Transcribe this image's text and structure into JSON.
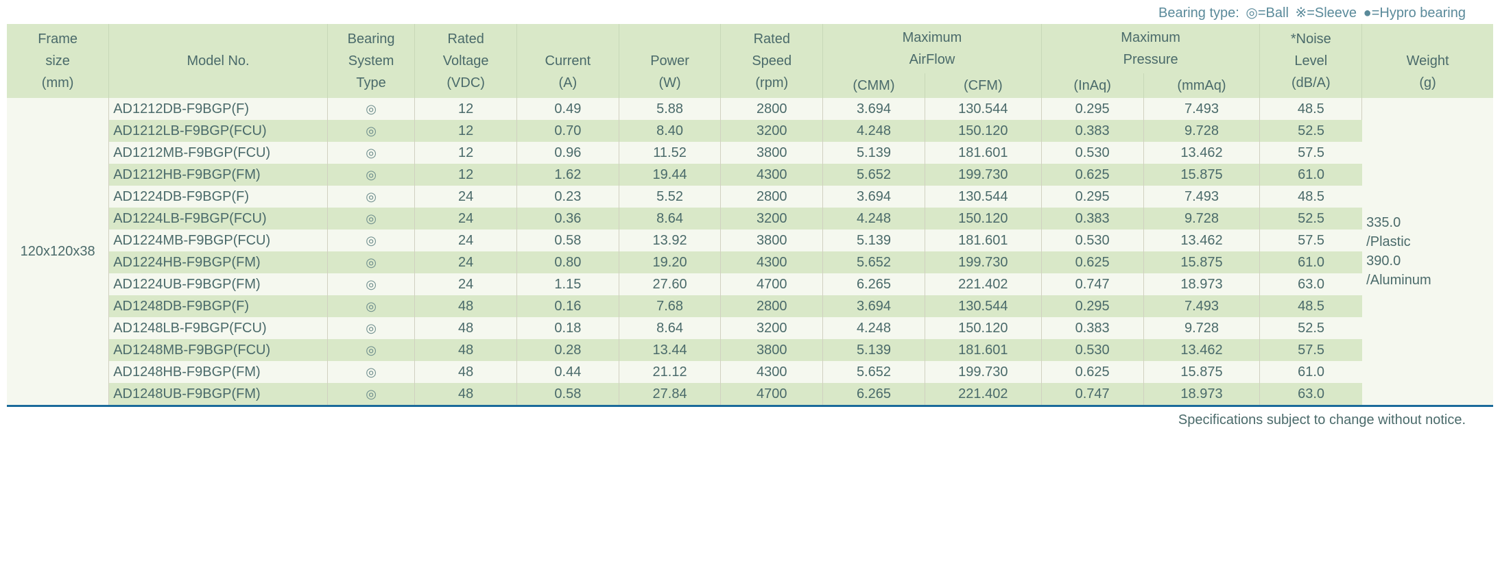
{
  "legend": {
    "label": "Bearing type:",
    "ball": "◎=Ball",
    "sleeve": "※=Sleeve",
    "hypro": "●=Hypro bearing"
  },
  "headers": {
    "frame": [
      "Frame",
      "size",
      "(mm)"
    ],
    "model": [
      "Model No."
    ],
    "bearing": [
      "Bearing",
      "System",
      "Type"
    ],
    "voltage": [
      "Rated",
      "Voltage",
      "(VDC)"
    ],
    "current": [
      "Current",
      "(A)"
    ],
    "power": [
      "Power",
      "(W)"
    ],
    "speed": [
      "Rated",
      "Speed",
      "(rpm)"
    ],
    "airflow": "Maximum AirFlow",
    "cmm": "(CMM)",
    "cfm": "(CFM)",
    "pressure": "Maximum Pressure",
    "inaq": "(InAq)",
    "mmaq": "(mmAq)",
    "noise": [
      "*Noise",
      "Level",
      "(dB/A)"
    ],
    "weight": [
      "Weight",
      "(g)"
    ]
  },
  "frame_size": "120x120x38",
  "weight_text": "335.0\n/Plastic\n390.0\n/Aluminum",
  "bearing_symbol": "◎",
  "rows": [
    {
      "model": "AD1212DB-F9BGP(F)",
      "voltage": "12",
      "current": "0.49",
      "power": "5.88",
      "speed": "2800",
      "cmm": "3.694",
      "cfm": "130.544",
      "inaq": "0.295",
      "mmaq": "7.493",
      "noise": "48.5"
    },
    {
      "model": "AD1212LB-F9BGP(FCU)",
      "voltage": "12",
      "current": "0.70",
      "power": "8.40",
      "speed": "3200",
      "cmm": "4.248",
      "cfm": "150.120",
      "inaq": "0.383",
      "mmaq": "9.728",
      "noise": "52.5"
    },
    {
      "model": "AD1212MB-F9BGP(FCU)",
      "voltage": "12",
      "current": "0.96",
      "power": "11.52",
      "speed": "3800",
      "cmm": "5.139",
      "cfm": "181.601",
      "inaq": "0.530",
      "mmaq": "13.462",
      "noise": "57.5"
    },
    {
      "model": "AD1212HB-F9BGP(FM)",
      "voltage": "12",
      "current": "1.62",
      "power": "19.44",
      "speed": "4300",
      "cmm": "5.652",
      "cfm": "199.730",
      "inaq": "0.625",
      "mmaq": "15.875",
      "noise": "61.0"
    },
    {
      "model": "AD1224DB-F9BGP(F)",
      "voltage": "24",
      "current": "0.23",
      "power": "5.52",
      "speed": "2800",
      "cmm": "3.694",
      "cfm": "130.544",
      "inaq": "0.295",
      "mmaq": "7.493",
      "noise": "48.5"
    },
    {
      "model": "AD1224LB-F9BGP(FCU)",
      "voltage": "24",
      "current": "0.36",
      "power": "8.64",
      "speed": "3200",
      "cmm": "4.248",
      "cfm": "150.120",
      "inaq": "0.383",
      "mmaq": "9.728",
      "noise": "52.5"
    },
    {
      "model": "AD1224MB-F9BGP(FCU)",
      "voltage": "24",
      "current": "0.58",
      "power": "13.92",
      "speed": "3800",
      "cmm": "5.139",
      "cfm": "181.601",
      "inaq": "0.530",
      "mmaq": "13.462",
      "noise": "57.5"
    },
    {
      "model": "AD1224HB-F9BGP(FM)",
      "voltage": "24",
      "current": "0.80",
      "power": "19.20",
      "speed": "4300",
      "cmm": "5.652",
      "cfm": "199.730",
      "inaq": "0.625",
      "mmaq": "15.875",
      "noise": "61.0"
    },
    {
      "model": "AD1224UB-F9BGP(FM)",
      "voltage": "24",
      "current": "1.15",
      "power": "27.60",
      "speed": "4700",
      "cmm": "6.265",
      "cfm": "221.402",
      "inaq": "0.747",
      "mmaq": "18.973",
      "noise": "63.0"
    },
    {
      "model": "AD1248DB-F9BGP(F)",
      "voltage": "48",
      "current": "0.16",
      "power": "7.68",
      "speed": "2800",
      "cmm": "3.694",
      "cfm": "130.544",
      "inaq": "0.295",
      "mmaq": "7.493",
      "noise": "48.5"
    },
    {
      "model": "AD1248LB-F9BGP(FCU)",
      "voltage": "48",
      "current": "0.18",
      "power": "8.64",
      "speed": "3200",
      "cmm": "4.248",
      "cfm": "150.120",
      "inaq": "0.383",
      "mmaq": "9.728",
      "noise": "52.5"
    },
    {
      "model": "AD1248MB-F9BGP(FCU)",
      "voltage": "48",
      "current": "0.28",
      "power": "13.44",
      "speed": "3800",
      "cmm": "5.139",
      "cfm": "181.601",
      "inaq": "0.530",
      "mmaq": "13.462",
      "noise": "57.5"
    },
    {
      "model": "AD1248HB-F9BGP(FM)",
      "voltage": "48",
      "current": "0.44",
      "power": "21.12",
      "speed": "4300",
      "cmm": "5.652",
      "cfm": "199.730",
      "inaq": "0.625",
      "mmaq": "15.875",
      "noise": "61.0"
    },
    {
      "model": "AD1248UB-F9BGP(FM)",
      "voltage": "48",
      "current": "0.58",
      "power": "27.84",
      "speed": "4700",
      "cmm": "6.265",
      "cfm": "221.402",
      "inaq": "0.747",
      "mmaq": "18.973",
      "noise": "63.0"
    }
  ],
  "footer": "Specifications subject to change without notice.",
  "colors": {
    "header_bg": "#d9e8c8",
    "row_even_bg": "#d9e8c8",
    "row_odd_bg": "#f5f8ef",
    "text": "#4a6a6a",
    "legend_text": "#5a8a9a",
    "footer_border": "#1a6a9a"
  }
}
